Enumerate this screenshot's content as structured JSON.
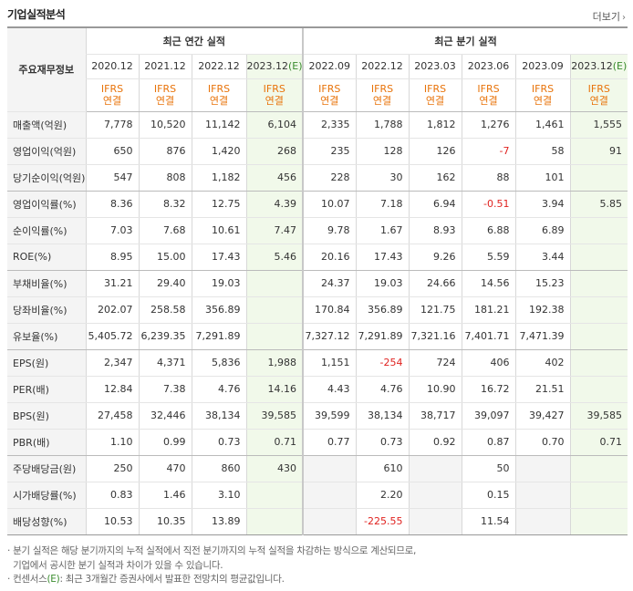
{
  "header": {
    "title": "기업실적분석",
    "more": "더보기"
  },
  "groups": {
    "annual": "최근 연간 실적",
    "quarter": "최근 분기 실적"
  },
  "corner_label": "주요재무정보",
  "annual_years": [
    {
      "label": "2020.12",
      "e": ""
    },
    {
      "label": "2021.12",
      "e": ""
    },
    {
      "label": "2022.12",
      "e": ""
    },
    {
      "label": "2023.12",
      "e": "(E)"
    }
  ],
  "quarter_years": [
    {
      "label": "2022.09",
      "e": ""
    },
    {
      "label": "2022.12",
      "e": ""
    },
    {
      "label": "2023.03",
      "e": ""
    },
    {
      "label": "2023.06",
      "e": ""
    },
    {
      "label": "2023.09",
      "e": ""
    },
    {
      "label": "2023.12",
      "e": "(E)"
    }
  ],
  "ifrs": {
    "line1": "IFRS",
    "line2": "연결"
  },
  "rows": [
    {
      "label": "매출액(억원)",
      "values": [
        "7,778",
        "10,520",
        "11,142",
        "6,104",
        "2,335",
        "1,788",
        "1,812",
        "1,276",
        "1,461",
        "1,555"
      ]
    },
    {
      "label": "영업이익(억원)",
      "values": [
        "650",
        "876",
        "1,420",
        "268",
        "235",
        "128",
        "126",
        "-7",
        "58",
        "91"
      ]
    },
    {
      "label": "당기순이익(억원)",
      "values": [
        "547",
        "808",
        "1,182",
        "456",
        "228",
        "30",
        "162",
        "88",
        "101",
        ""
      ]
    },
    {
      "label": "영업이익률(%)",
      "values": [
        "8.36",
        "8.32",
        "12.75",
        "4.39",
        "10.07",
        "7.18",
        "6.94",
        "-0.51",
        "3.94",
        "5.85"
      ]
    },
    {
      "label": "순이익률(%)",
      "values": [
        "7.03",
        "7.68",
        "10.61",
        "7.47",
        "9.78",
        "1.67",
        "8.93",
        "6.88",
        "6.89",
        ""
      ]
    },
    {
      "label": "ROE(%)",
      "values": [
        "8.95",
        "15.00",
        "17.43",
        "5.46",
        "20.16",
        "17.43",
        "9.26",
        "5.59",
        "3.44",
        ""
      ]
    },
    {
      "label": "부채비율(%)",
      "values": [
        "31.21",
        "29.40",
        "19.03",
        "",
        "24.37",
        "19.03",
        "24.66",
        "14.56",
        "15.23",
        ""
      ]
    },
    {
      "label": "당좌비율(%)",
      "values": [
        "202.07",
        "258.58",
        "356.89",
        "",
        "170.84",
        "356.89",
        "121.75",
        "181.21",
        "192.38",
        ""
      ]
    },
    {
      "label": "유보율(%)",
      "values": [
        "5,405.72",
        "6,239.35",
        "7,291.89",
        "",
        "7,327.12",
        "7,291.89",
        "7,321.16",
        "7,401.71",
        "7,471.39",
        ""
      ]
    },
    {
      "label": "EPS(원)",
      "values": [
        "2,347",
        "4,371",
        "5,836",
        "1,988",
        "1,151",
        "-254",
        "724",
        "406",
        "402",
        ""
      ]
    },
    {
      "label": "PER(배)",
      "values": [
        "12.84",
        "7.38",
        "4.76",
        "14.16",
        "4.43",
        "4.76",
        "10.90",
        "16.72",
        "21.51",
        ""
      ]
    },
    {
      "label": "BPS(원)",
      "values": [
        "27,458",
        "32,446",
        "38,134",
        "39,585",
        "39,599",
        "38,134",
        "38,717",
        "39,097",
        "39,427",
        "39,585"
      ]
    },
    {
      "label": "PBR(배)",
      "values": [
        "1.10",
        "0.99",
        "0.73",
        "0.71",
        "0.77",
        "0.73",
        "0.92",
        "0.87",
        "0.70",
        "0.71"
      ]
    },
    {
      "label": "주당배당금(원)",
      "values": [
        "250",
        "470",
        "860",
        "430",
        "",
        "610",
        "",
        "50",
        "",
        ""
      ]
    },
    {
      "label": "시가배당률(%)",
      "values": [
        "0.83",
        "1.46",
        "3.10",
        "",
        "",
        "2.20",
        "",
        "0.15",
        "",
        ""
      ]
    },
    {
      "label": "배당성향(%)",
      "values": [
        "10.53",
        "10.35",
        "13.89",
        "",
        "",
        "-225.55",
        "",
        "11.54",
        "",
        ""
      ]
    }
  ],
  "notes": {
    "line1": "· 분기 실적은 해당 분기까지의 누적 실적에서 직전 분기까지의 누적 실적을 차감하는 방식으로 계산되므로,",
    "line2": "  기업에서 공시한 분기 실적과 차이가 있을 수 있습니다.",
    "line3_a": "· 컨센서스",
    "line3_mark": "(E)",
    "line3_b": ": 최근 3개월간 증권사에서 발표한 전망치의 평균값입니다."
  }
}
